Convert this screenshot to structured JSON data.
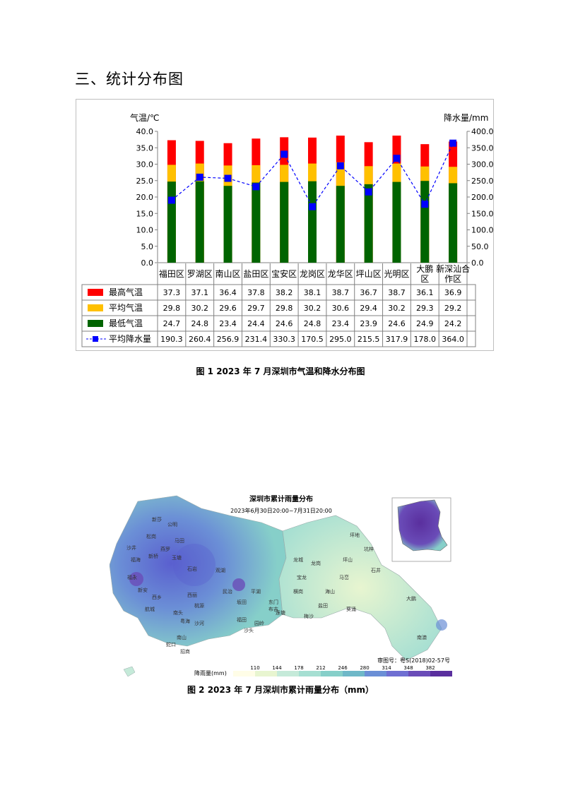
{
  "section_title": "三、统计分布图",
  "figure1_caption": "图 1   2023 年 7 月深圳市气温和降水分布图",
  "figure2_caption": "图 2   2023 年 7 月深圳市累计雨量分布（mm）",
  "chart_data": {
    "type": "bar",
    "title": "",
    "ylabel_left": "气温/℃",
    "ylabel_right": "降水量/mm",
    "ylim_left": [
      0,
      40
    ],
    "ylim_right": [
      0,
      400
    ],
    "left_ticks": [
      "40.0",
      "35.0",
      "30.0",
      "25.0",
      "20.0",
      "15.0",
      "10.0",
      "5.0",
      "0.0"
    ],
    "right_ticks": [
      "400.0",
      "350.0",
      "300.0",
      "250.0",
      "200.0",
      "150.0",
      "100.0",
      "50.0",
      "0.0"
    ],
    "categories": [
      "福田区",
      "罗湖区",
      "南山区",
      "盐田区",
      "宝安区",
      "龙岗区",
      "龙华区",
      "坪山区",
      "光明区",
      "大鹏新区",
      "深汕合作区"
    ],
    "category_lines": [
      [
        "福田区"
      ],
      [
        "罗湖区"
      ],
      [
        "南山区"
      ],
      [
        "盐田区"
      ],
      [
        "宝安区"
      ],
      [
        "龙岗区"
      ],
      [
        "龙华区"
      ],
      [
        "坪山区"
      ],
      [
        "光明区"
      ],
      [
        "大鹏",
        "区"
      ],
      [
        "新深汕合",
        "作区"
      ]
    ],
    "series": [
      {
        "name": "最高气温",
        "color": "#ff0000",
        "values": [
          37.3,
          37.1,
          36.4,
          37.8,
          38.2,
          38.1,
          38.7,
          36.7,
          38.7,
          36.1,
          36.9
        ],
        "labels": [
          "37.3",
          "37.1",
          "36.4",
          "37.8",
          "38.2",
          "38.1",
          "38.7",
          "36.7",
          "38.7",
          "36.1",
          "36.9"
        ]
      },
      {
        "name": "平均气温",
        "color": "#ffc000",
        "values": [
          29.8,
          30.2,
          29.6,
          29.7,
          29.8,
          30.2,
          30.6,
          29.4,
          30.2,
          29.3,
          29.2
        ],
        "labels": [
          "29.8",
          "30.2",
          "29.6",
          "29.7",
          "29.8",
          "30.2",
          "30.6",
          "29.4",
          "30.2",
          "29.3",
          "29.2"
        ]
      },
      {
        "name": "最低气温",
        "color": "#006400",
        "values": [
          24.7,
          24.8,
          23.4,
          24.4,
          24.6,
          24.8,
          23.4,
          23.9,
          24.6,
          24.9,
          24.2
        ],
        "labels": [
          "24.7",
          "24.8",
          "23.4",
          "24.4",
          "24.6",
          "24.8",
          "23.4",
          "23.9",
          "24.6",
          "24.9",
          "24.2"
        ]
      },
      {
        "name": "平均降水量",
        "color": "#0000ff",
        "values": [
          190.3,
          260.4,
          256.9,
          231.4,
          330.3,
          170.5,
          295.0,
          215.5,
          317.9,
          178.0,
          364.0
        ],
        "labels": [
          "190.3",
          "260.4",
          "256.9",
          "231.4",
          "330.3",
          "170.5",
          "295.0",
          "215.5",
          "317.9",
          "178.0",
          "364.0"
        ]
      }
    ],
    "legend_placement": "table-bottom",
    "grid": false
  },
  "map": {
    "title": "深圳市累计雨量分布",
    "subtitle": "2023年6月30日20:00~7月31日20:00",
    "approval": "审图号：粤S(2018)02-57号",
    "legend_label": "降雨量(mm)",
    "legend_ticks": [
      "110",
      "144",
      "178",
      "212",
      "246",
      "280",
      "314",
      "348",
      "382"
    ],
    "legend_colors": [
      "#fffde7",
      "#e8f5d0",
      "#c5ead9",
      "#a6dfd2",
      "#86cfc9",
      "#6fb8c8",
      "#6b8fd6",
      "#6f6fd2",
      "#6a4cb8",
      "#5a2f9e"
    ],
    "place_names": [
      "新莎",
      "公明",
      "马田",
      "松岗",
      "沙井",
      "福海",
      "新桥",
      "燕罗",
      "玉塘",
      "石岩",
      "福永",
      "新安",
      "西乡",
      "航城",
      "西丽",
      "桃源",
      "南头",
      "粤海",
      "沙河",
      "南山",
      "蛇口",
      "招商",
      "观湖",
      "民治",
      "坂田",
      "平湖",
      "龙城",
      "宝龙",
      "坪地",
      "坑梓",
      "葵涌",
      "大鹏",
      "南澳",
      "石井",
      "马峦",
      "坪山",
      "龙岗",
      "横岗",
      "布吉",
      "莲塘",
      "福田",
      "沙头",
      "园岭",
      "东门",
      "梅沙",
      "盐田",
      "海山"
    ]
  }
}
